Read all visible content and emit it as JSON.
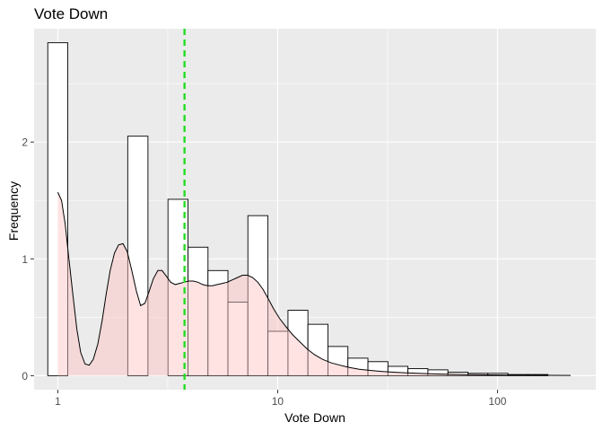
{
  "chart_data": {
    "type": "histogram",
    "title": "Vote Down",
    "xlabel": "Vote Down",
    "ylabel": "Frequency",
    "x_scale": "log10",
    "xlim": [
      0.78,
      280
    ],
    "ylim": [
      -0.12,
      2.97
    ],
    "x_ticks": [
      {
        "value": 1,
        "label": "1"
      },
      {
        "value": 10,
        "label": "10"
      },
      {
        "value": 100,
        "label": "100"
      }
    ],
    "y_ticks": [
      {
        "value": 0,
        "label": "0"
      },
      {
        "value": 1,
        "label": "1"
      },
      {
        "value": 2,
        "label": "2"
      }
    ],
    "grid": true,
    "legend": "none",
    "bar_fill": "#ffffff",
    "bar_stroke": "#000000",
    "density_fill": "#ffc0c0",
    "density_stroke": "#000000",
    "reference_line": {
      "value": 3.77,
      "color": "#22dd22",
      "style": "dashed"
    },
    "panel_background": "#ebebeb",
    "bins": [
      {
        "x_start": 0.9,
        "x_end": 1.11,
        "frequency": 2.85
      },
      {
        "x_start": 1.11,
        "x_end": 1.37,
        "frequency": 0.0
      },
      {
        "x_start": 1.37,
        "x_end": 1.69,
        "frequency": 0.0
      },
      {
        "x_start": 1.69,
        "x_end": 2.08,
        "frequency": 0.0
      },
      {
        "x_start": 2.08,
        "x_end": 2.57,
        "frequency": 2.05
      },
      {
        "x_start": 2.57,
        "x_end": 3.17,
        "frequency": 0.0
      },
      {
        "x_start": 3.17,
        "x_end": 3.91,
        "frequency": 1.51
      },
      {
        "x_start": 3.91,
        "x_end": 4.82,
        "frequency": 1.1
      },
      {
        "x_start": 4.82,
        "x_end": 5.94,
        "frequency": 0.9
      },
      {
        "x_start": 5.94,
        "x_end": 7.32,
        "frequency": 0.63
      },
      {
        "x_start": 7.32,
        "x_end": 9.03,
        "frequency": 1.37
      },
      {
        "x_start": 9.03,
        "x_end": 11.14,
        "frequency": 0.38
      },
      {
        "x_start": 11.14,
        "x_end": 13.73,
        "frequency": 0.56
      },
      {
        "x_start": 13.73,
        "x_end": 16.93,
        "frequency": 0.44
      },
      {
        "x_start": 16.93,
        "x_end": 20.87,
        "frequency": 0.25
      },
      {
        "x_start": 20.87,
        "x_end": 25.74,
        "frequency": 0.15
      },
      {
        "x_start": 25.74,
        "x_end": 31.74,
        "frequency": 0.12
      },
      {
        "x_start": 31.74,
        "x_end": 39.13,
        "frequency": 0.08
      },
      {
        "x_start": 39.13,
        "x_end": 48.25,
        "frequency": 0.06
      },
      {
        "x_start": 48.25,
        "x_end": 59.49,
        "frequency": 0.05
      },
      {
        "x_start": 59.49,
        "x_end": 73.35,
        "frequency": 0.03
      },
      {
        "x_start": 73.35,
        "x_end": 90.44,
        "frequency": 0.02
      },
      {
        "x_start": 90.44,
        "x_end": 111.5,
        "frequency": 0.02
      },
      {
        "x_start": 111.5,
        "x_end": 137.5,
        "frequency": 0.01
      },
      {
        "x_start": 137.5,
        "x_end": 169.5,
        "frequency": 0.01
      },
      {
        "x_start": 169.5,
        "x_end": 209.0,
        "frequency": 0.0
      },
      {
        "x_start": 209.0,
        "x_end": 257.7,
        "frequency": 0.0
      }
    ],
    "density": {
      "x": [
        1.0,
        1.04,
        1.08,
        1.12,
        1.17,
        1.22,
        1.27,
        1.33,
        1.39,
        1.45,
        1.52,
        1.59,
        1.66,
        1.73,
        1.81,
        1.89,
        1.98,
        2.07,
        2.17,
        2.28,
        2.38,
        2.49,
        2.6,
        2.72,
        2.85,
        2.98,
        3.12,
        3.26,
        3.42,
        3.58,
        3.75,
        3.94,
        4.13,
        4.34,
        4.56,
        4.8,
        5.05,
        5.32,
        5.6,
        5.9,
        6.22,
        6.56,
        6.92,
        7.3,
        7.7,
        8.12,
        8.57,
        9.05,
        9.6,
        10.2,
        10.9,
        11.7,
        12.6,
        13.6,
        14.7,
        16.0,
        17.5,
        19.2,
        21.2,
        23.5,
        26.3,
        29.5,
        33.5,
        38.5,
        45.0,
        53.0,
        63.0,
        76.0,
        92.0,
        113.0,
        140.0,
        175.0,
        215.0
      ],
      "y": [
        1.57,
        1.5,
        1.3,
        1.02,
        0.7,
        0.4,
        0.2,
        0.1,
        0.09,
        0.14,
        0.27,
        0.47,
        0.7,
        0.9,
        1.05,
        1.12,
        1.13,
        1.06,
        0.9,
        0.72,
        0.6,
        0.62,
        0.72,
        0.83,
        0.9,
        0.9,
        0.85,
        0.8,
        0.78,
        0.79,
        0.8,
        0.81,
        0.81,
        0.8,
        0.78,
        0.77,
        0.77,
        0.78,
        0.79,
        0.8,
        0.82,
        0.84,
        0.86,
        0.86,
        0.84,
        0.8,
        0.74,
        0.66,
        0.57,
        0.49,
        0.42,
        0.35,
        0.29,
        0.23,
        0.18,
        0.14,
        0.11,
        0.09,
        0.07,
        0.055,
        0.045,
        0.037,
        0.03,
        0.024,
        0.019,
        0.015,
        0.012,
        0.009,
        0.007,
        0.005,
        0.004,
        0.003,
        0.002
      ]
    }
  }
}
